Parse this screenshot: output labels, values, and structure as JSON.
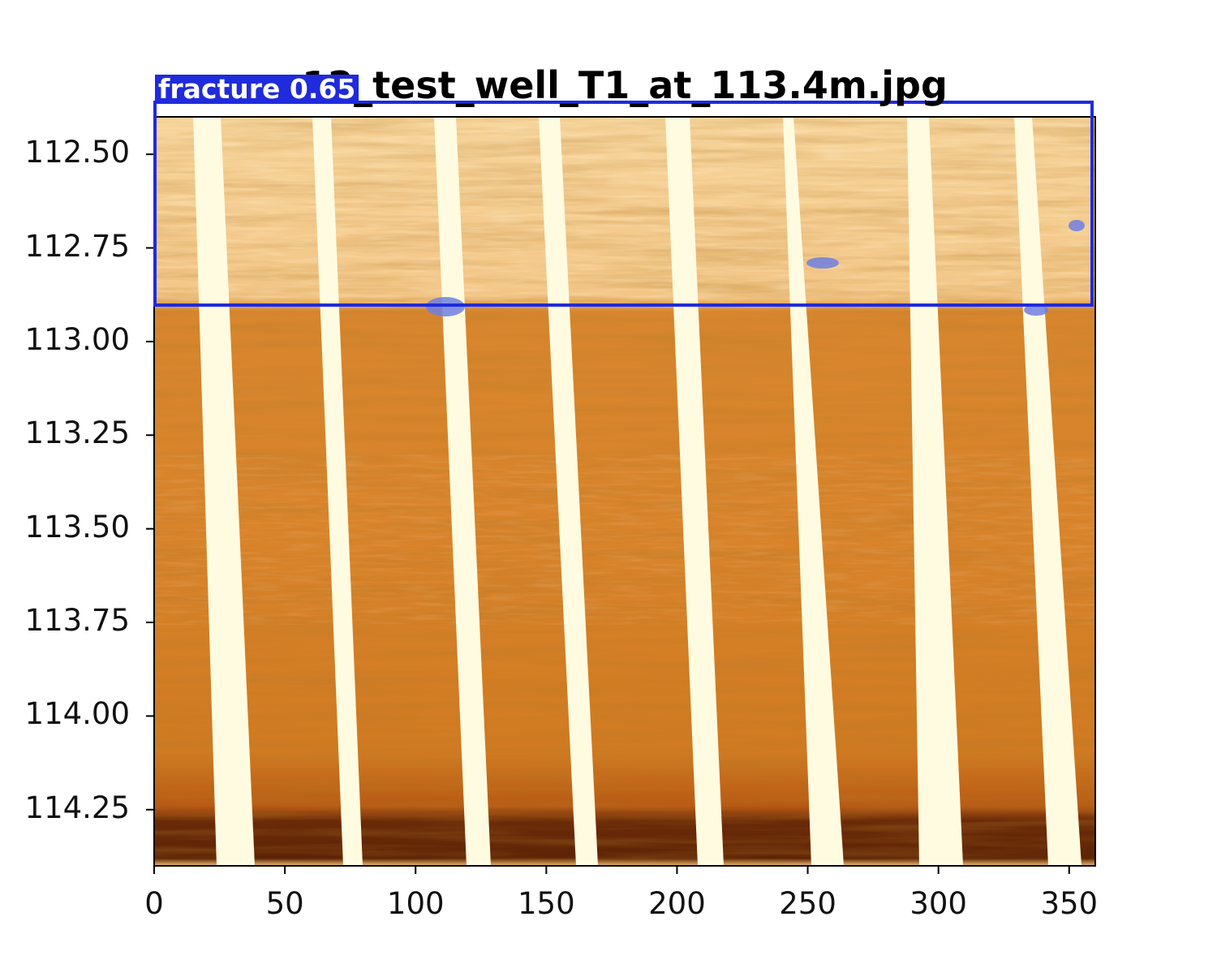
{
  "figure": {
    "title": "12_test_well_T1_at_113.4m.jpg",
    "colormap": "afmhot-orange",
    "y_ticks": [
      "112.50",
      "112.75",
      "113.00",
      "113.25",
      "113.50",
      "113.75",
      "114.00",
      "114.25"
    ],
    "x_ticks": [
      "0",
      "50",
      "100",
      "150",
      "200",
      "250",
      "300",
      "350"
    ],
    "x_range": [
      0,
      360
    ],
    "y_range": [
      112.4,
      114.4
    ],
    "y_inverted": true
  },
  "detection": {
    "label": "fracture 0.65",
    "class": "fracture",
    "confidence": 0.65,
    "box_color": "#1f2bdc"
  },
  "colors": {
    "track_color": "#fffbe0",
    "base_color": "#d27d24",
    "dark_band": "#6a2a08",
    "mask_color": "#6f7fe0"
  }
}
